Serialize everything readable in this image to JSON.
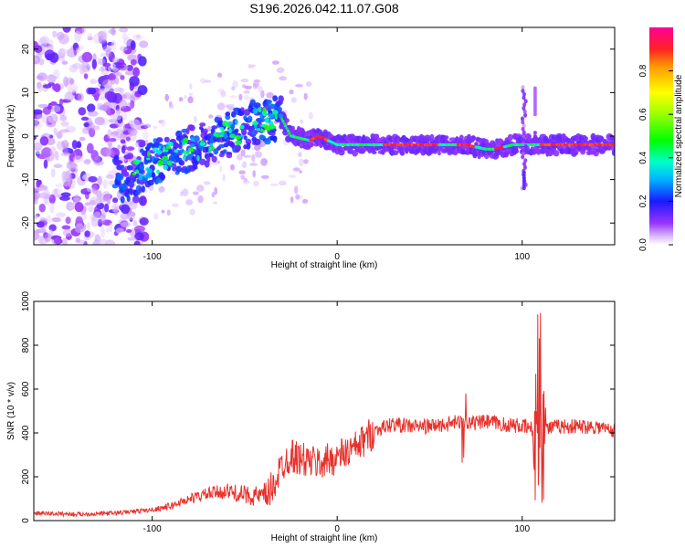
{
  "figure": {
    "title": "S196.2026.042.11.07.G08"
  },
  "chart_data": [
    {
      "type": "heatmap",
      "title": "S196.2026.042.11.07.G08",
      "xlabel": "Height of straight line (km)",
      "ylabel": "Frequency (Hz)",
      "xlim": [
        -164,
        150
      ],
      "ylim": [
        -25,
        25
      ],
      "xticks": [
        -100,
        0,
        100
      ],
      "xtick_labels": [
        "-100",
        "0",
        "100"
      ],
      "yticks": [
        20,
        10,
        0,
        -10,
        -20
      ],
      "ytick_labels": [
        "20",
        "10",
        "0",
        "-10",
        "-20"
      ],
      "ridge": {
        "description": "dominant frequency ridge vs height",
        "x": [
          -115,
          -100,
          -80,
          -60,
          -45,
          -30,
          -25,
          -15,
          -10,
          0,
          10,
          20,
          40,
          60,
          70,
          80,
          85,
          95,
          105,
          110,
          130,
          150
        ],
        "y": [
          -10,
          -6,
          -3,
          0,
          3,
          4,
          0,
          -1,
          0,
          -2,
          -2,
          -2,
          -2,
          -2,
          -2,
          -3,
          -3,
          -2,
          -2,
          -2,
          -2,
          -2
        ]
      },
      "colorbar": {
        "label": "Normalized spectral amplitude",
        "range": [
          0.0,
          1.0
        ],
        "ticks": [
          0.0,
          0.2,
          0.4,
          0.6,
          0.8
        ],
        "tick_labels": [
          "0.0",
          "0.2",
          "0.4",
          "0.6",
          "0.8"
        ]
      }
    },
    {
      "type": "line",
      "xlabel": "Height of straight line (km)",
      "ylabel": "SNR (10 * v/v)",
      "xlim": [
        -164,
        150
      ],
      "ylim": [
        0,
        1000
      ],
      "xticks": [
        -100,
        0,
        100
      ],
      "xtick_labels": [
        "-100",
        "0",
        "100"
      ],
      "yticks": [
        0,
        200,
        400,
        600,
        800,
        1000
      ],
      "ytick_labels": [
        "0",
        "200",
        "400",
        "600",
        "800",
        "1000"
      ],
      "series": [
        {
          "name": "SNR",
          "color": "#e8312c",
          "x": [
            -164,
            -140,
            -120,
            -100,
            -90,
            -80,
            -70,
            -60,
            -50,
            -40,
            -35,
            -30,
            -25,
            -20,
            -10,
            0,
            10,
            20,
            30,
            40,
            50,
            60,
            65,
            70,
            80,
            90,
            100,
            105,
            108,
            110,
            113,
            120,
            130,
            140,
            150
          ],
          "values": [
            30,
            25,
            30,
            45,
            60,
            90,
            110,
            120,
            100,
            90,
            150,
            250,
            300,
            280,
            260,
            290,
            330,
            410,
            440,
            430,
            430,
            440,
            450,
            440,
            450,
            440,
            430,
            420,
            300,
            450,
            420,
            430,
            430,
            430,
            410
          ]
        }
      ]
    }
  ]
}
